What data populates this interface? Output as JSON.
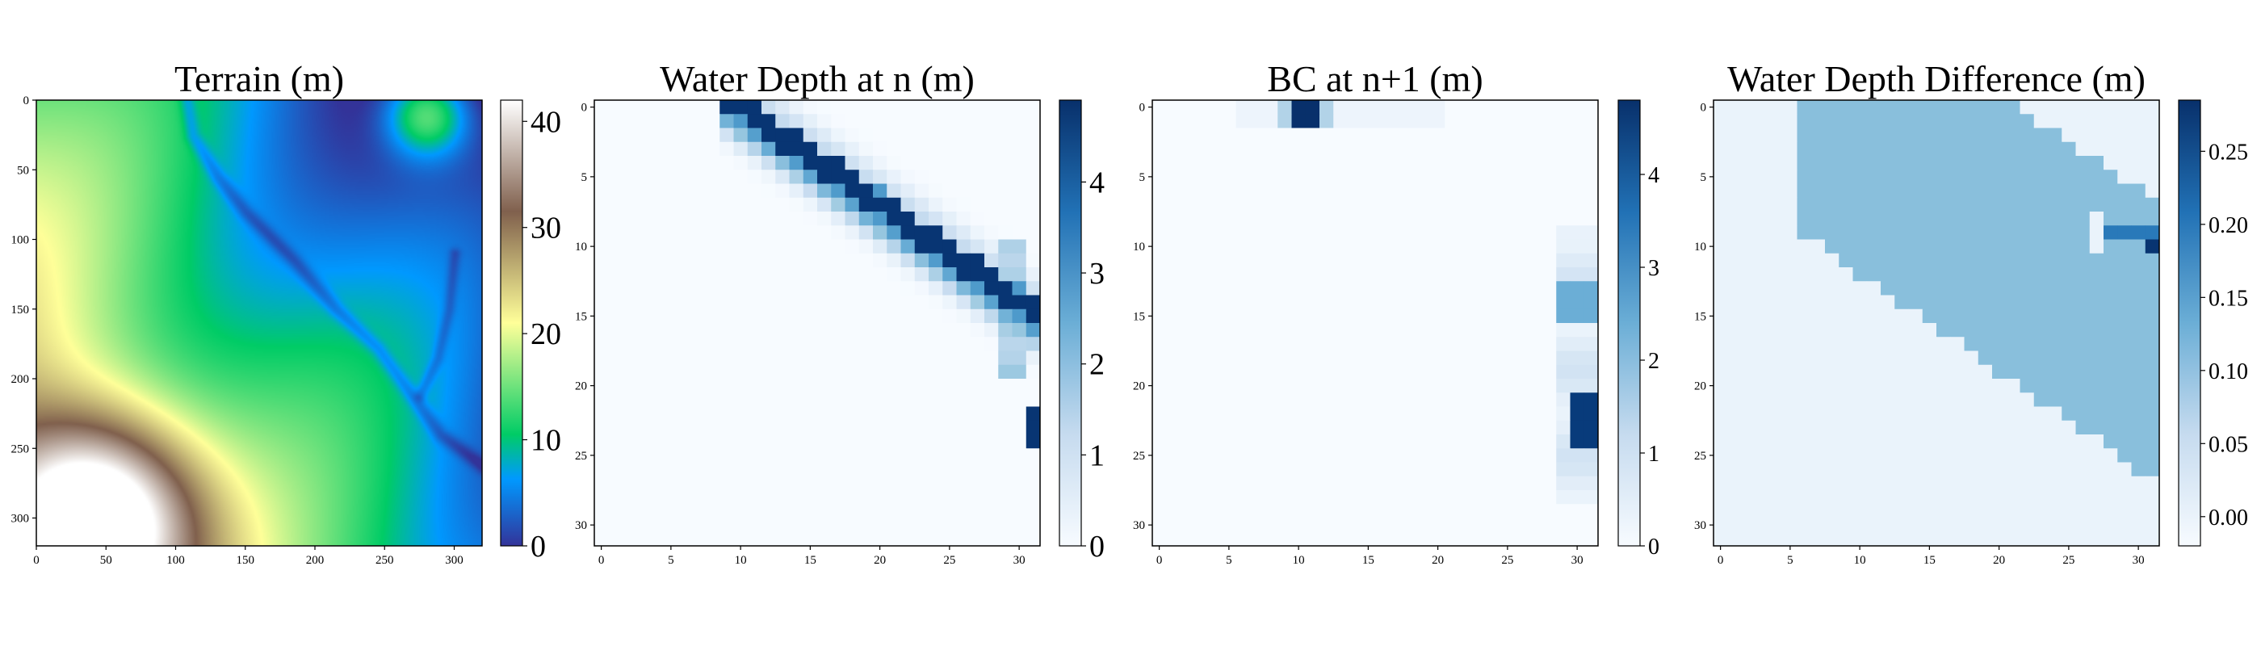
{
  "chart_data": [
    {
      "type": "heatmap",
      "title": "Terrain (m)",
      "grid_size": 320,
      "x_ticks": [
        "0",
        "50",
        "100",
        "150",
        "200",
        "250",
        "300"
      ],
      "y_ticks": [
        "0",
        "50",
        "100",
        "150",
        "200",
        "250",
        "300"
      ],
      "colorbar": {
        "colormap": "terrain",
        "range": [
          0,
          42
        ],
        "ticks": [
          "0",
          "10",
          "20",
          "30",
          "40"
        ]
      }
    },
    {
      "type": "heatmap",
      "title": "Water Depth at n (m)",
      "grid_size": 32,
      "x_ticks": [
        "0",
        "5",
        "10",
        "15",
        "20",
        "25",
        "30"
      ],
      "y_ticks": [
        "0",
        "5",
        "10",
        "15",
        "20",
        "25",
        "30"
      ],
      "colorbar": {
        "colormap": "Blues",
        "range": [
          0,
          4.9
        ],
        "ticks": [
          "0",
          "1",
          "2",
          "3",
          "4"
        ]
      }
    },
    {
      "type": "heatmap",
      "title": "BC at n+1 (m)",
      "grid_size": 32,
      "x_ticks": [
        "0",
        "5",
        "10",
        "15",
        "20",
        "25",
        "30"
      ],
      "y_ticks": [
        "0",
        "5",
        "10",
        "15",
        "20",
        "25",
        "30"
      ],
      "colorbar": {
        "colormap": "Blues",
        "range": [
          0,
          4.8
        ],
        "ticks": [
          "0",
          "1",
          "2",
          "3",
          "4"
        ]
      }
    },
    {
      "type": "heatmap",
      "title": "Water Depth Difference (m)",
      "grid_size": 32,
      "x_ticks": [
        "0",
        "5",
        "10",
        "15",
        "20",
        "25",
        "30"
      ],
      "y_ticks": [
        "0",
        "5",
        "10",
        "15",
        "20",
        "25",
        "30"
      ],
      "colorbar": {
        "colormap": "Blues",
        "range": [
          -0.02,
          0.285
        ],
        "ticks": [
          "0.00",
          "0.05",
          "0.10",
          "0.15",
          "0.20",
          "0.25"
        ]
      }
    }
  ]
}
